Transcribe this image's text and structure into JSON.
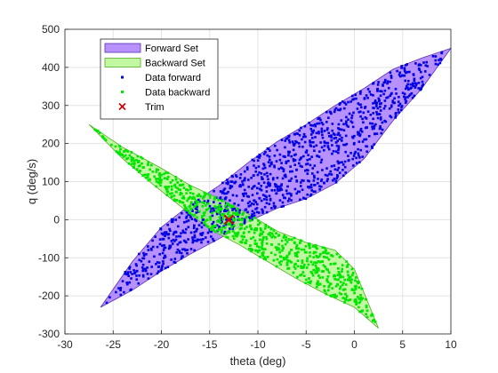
{
  "chart_data": {
    "type": "scatter",
    "title": "",
    "xlabel": "theta (deg)",
    "ylabel": "q (deg/s)",
    "xlim": [
      -30,
      10
    ],
    "ylim": [
      -300,
      500
    ],
    "xticks": [
      -30,
      -25,
      -20,
      -15,
      -10,
      -5,
      0,
      5,
      10
    ],
    "yticks": [
      -300,
      -200,
      -100,
      0,
      100,
      200,
      300,
      400,
      500
    ],
    "grid": true,
    "legend_position": "top-left",
    "legend": [
      "Forward Set",
      "Backward Set",
      "Data forward",
      "Data backward",
      "Trim"
    ],
    "sets": [
      {
        "name": "Forward Set",
        "fill": "#9b66ff",
        "edge": "#5a2fb3",
        "lower_boundary": [
          [
            -26.3,
            -230
          ],
          [
            -23,
            -185
          ],
          [
            -20,
            -135
          ],
          [
            -17,
            -90
          ],
          [
            -14,
            -50
          ],
          [
            -11,
            -5
          ],
          [
            -8,
            30
          ],
          [
            -5,
            55
          ],
          [
            -2,
            95
          ],
          [
            1,
            160
          ],
          [
            4,
            260
          ],
          [
            7,
            345
          ],
          [
            10,
            450
          ]
        ],
        "upper_boundary": [
          [
            10,
            450
          ],
          [
            7,
            425
          ],
          [
            4,
            395
          ],
          [
            1,
            345
          ],
          [
            -2,
            300
          ],
          [
            -5,
            250
          ],
          [
            -8,
            205
          ],
          [
            -11,
            150
          ],
          [
            -14,
            90
          ],
          [
            -17,
            40
          ],
          [
            -20,
            -20
          ],
          [
            -23,
            -110
          ],
          [
            -26.3,
            -230
          ]
        ]
      },
      {
        "name": "Backward Set",
        "fill": "#aaf57d",
        "edge": "#4fae24",
        "lower_boundary": [
          [
            -27.5,
            250
          ],
          [
            -24,
            190
          ],
          [
            -20,
            135
          ],
          [
            -17,
            90
          ],
          [
            -14,
            55
          ],
          [
            -11,
            15
          ],
          [
            -8,
            -30
          ],
          [
            -5,
            -60
          ],
          [
            -2,
            -80
          ],
          [
            0,
            -130
          ],
          [
            2.5,
            -285
          ]
        ],
        "upper_boundary": [
          [
            2.5,
            -285
          ],
          [
            0,
            -230
          ],
          [
            -3,
            -195
          ],
          [
            -6,
            -155
          ],
          [
            -9,
            -110
          ],
          [
            -12,
            -65
          ],
          [
            -15,
            -25
          ],
          [
            -18,
            35
          ],
          [
            -21,
            95
          ],
          [
            -24,
            160
          ],
          [
            -27.5,
            250
          ]
        ]
      }
    ],
    "series": [
      {
        "name": "Data forward",
        "color": "#0000e0",
        "marker": "square",
        "count": 1100
      },
      {
        "name": "Data backward",
        "color": "#00e600",
        "marker": "square",
        "count": 1100
      }
    ],
    "trim": {
      "name": "Trim",
      "x": -13.0,
      "y": 0,
      "color": "#cc0000",
      "marker": "x"
    }
  }
}
